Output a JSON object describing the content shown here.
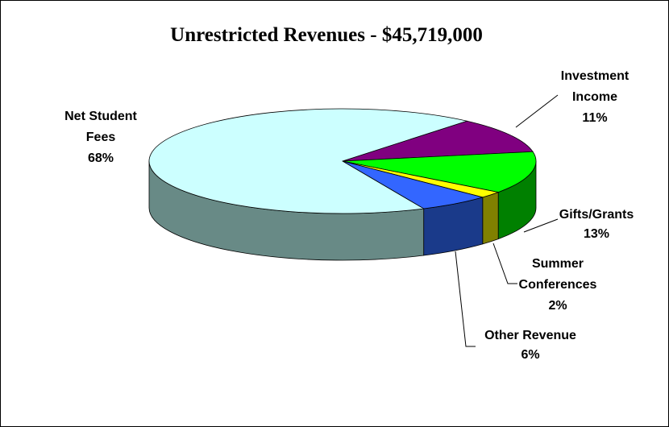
{
  "chart_data": {
    "type": "pie",
    "title": "Unrestricted Revenues - $45,719,000",
    "categories": [
      "Investment Income",
      "Gifts/Grants",
      "Summer Conferences",
      "Other Revenue",
      "Net Student Fees"
    ],
    "values": [
      11,
      13,
      2,
      6,
      68
    ],
    "value_labels": [
      "11%",
      "13%",
      "2%",
      "6%",
      "68%"
    ],
    "colors": [
      "#800080",
      "#00ff00",
      "#ffff00",
      "#3366ff",
      "#ccffff"
    ],
    "side_colors": [
      "#4d004d",
      "#008000",
      "#808000",
      "#1a3a8a",
      "#688a86"
    ]
  }
}
